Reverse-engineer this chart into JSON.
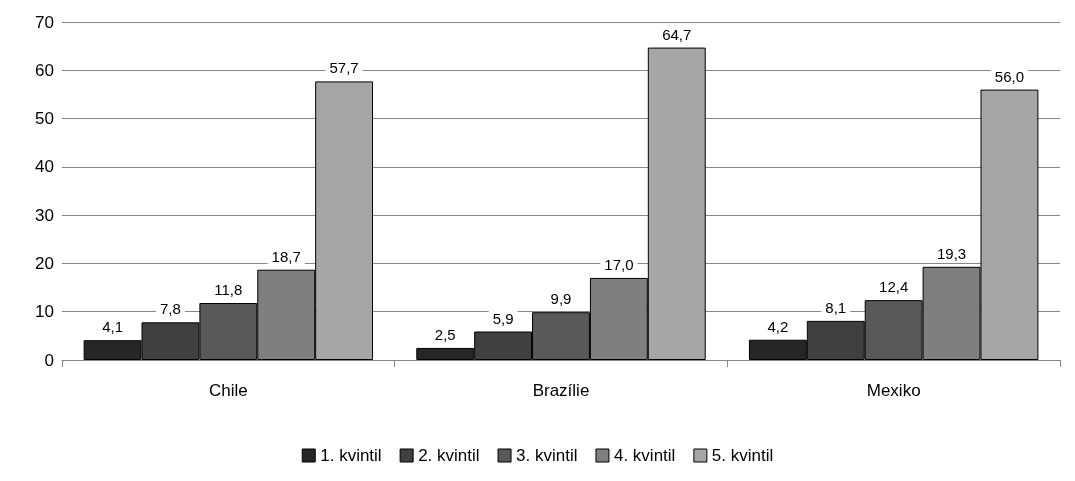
{
  "chart_data": {
    "type": "bar",
    "categories": [
      "Chile",
      "Brazílie",
      "Mexiko"
    ],
    "series": [
      {
        "name": "1. kvintil",
        "color": "#262626",
        "values": [
          4.1,
          2.5,
          4.2
        ]
      },
      {
        "name": "2. kvintil",
        "color": "#404040",
        "values": [
          7.8,
          5.9,
          8.1
        ]
      },
      {
        "name": "3. kvintil",
        "color": "#595959",
        "values": [
          11.8,
          9.9,
          12.4
        ]
      },
      {
        "name": "4. kvintil",
        "color": "#7f7f7f",
        "values": [
          18.7,
          17.0,
          19.3
        ]
      },
      {
        "name": "5. kvintil",
        "color": "#a6a6a6",
        "values": [
          57.7,
          64.7,
          56.0
        ]
      }
    ],
    "value_labels": [
      [
        "4,1",
        "2,5",
        "4,2"
      ],
      [
        "7,8",
        "5,9",
        "8,1"
      ],
      [
        "11,8",
        "9,9",
        "12,4"
      ],
      [
        "18,7",
        "17,0",
        "19,3"
      ],
      [
        "57,7",
        "64,7",
        "56,0"
      ]
    ],
    "ylim": [
      0,
      70
    ],
    "yticks": [
      0,
      10,
      20,
      30,
      40,
      50,
      60,
      70
    ],
    "grid": "y",
    "legend": "bottom"
  }
}
